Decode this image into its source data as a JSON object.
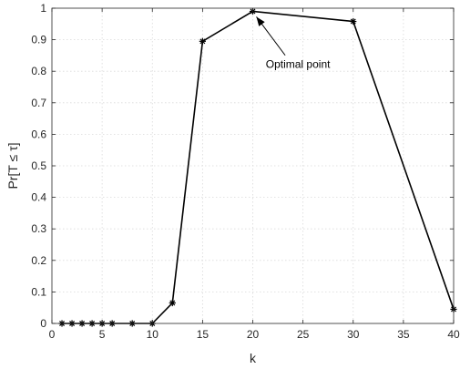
{
  "chart_data": {
    "type": "line",
    "xlabel": "k",
    "ylabel": "Pr[T ≤ τ]",
    "xlim": [
      0,
      40
    ],
    "ylim": [
      0,
      1
    ],
    "xticks": [
      0,
      5,
      10,
      15,
      20,
      25,
      30,
      35,
      40
    ],
    "yticks": [
      0,
      0.1,
      0.2,
      0.3,
      0.4,
      0.5,
      0.6,
      0.7,
      0.8,
      0.9,
      1
    ],
    "grid": true,
    "marker": "asterisk",
    "series": [
      {
        "x": [
          1,
          2,
          3,
          4,
          5,
          6,
          8,
          10,
          12,
          15,
          20,
          30,
          40
        ],
        "values": [
          0,
          0,
          0,
          0,
          0,
          0,
          0,
          0,
          0.065,
          0.895,
          0.99,
          0.958,
          0.045
        ],
        "color": "#000000"
      }
    ],
    "annotations": [
      {
        "text": "Optimal point",
        "target_x": 20,
        "target_y": 0.99,
        "text_x": 24.5,
        "text_y": 0.81
      }
    ]
  }
}
